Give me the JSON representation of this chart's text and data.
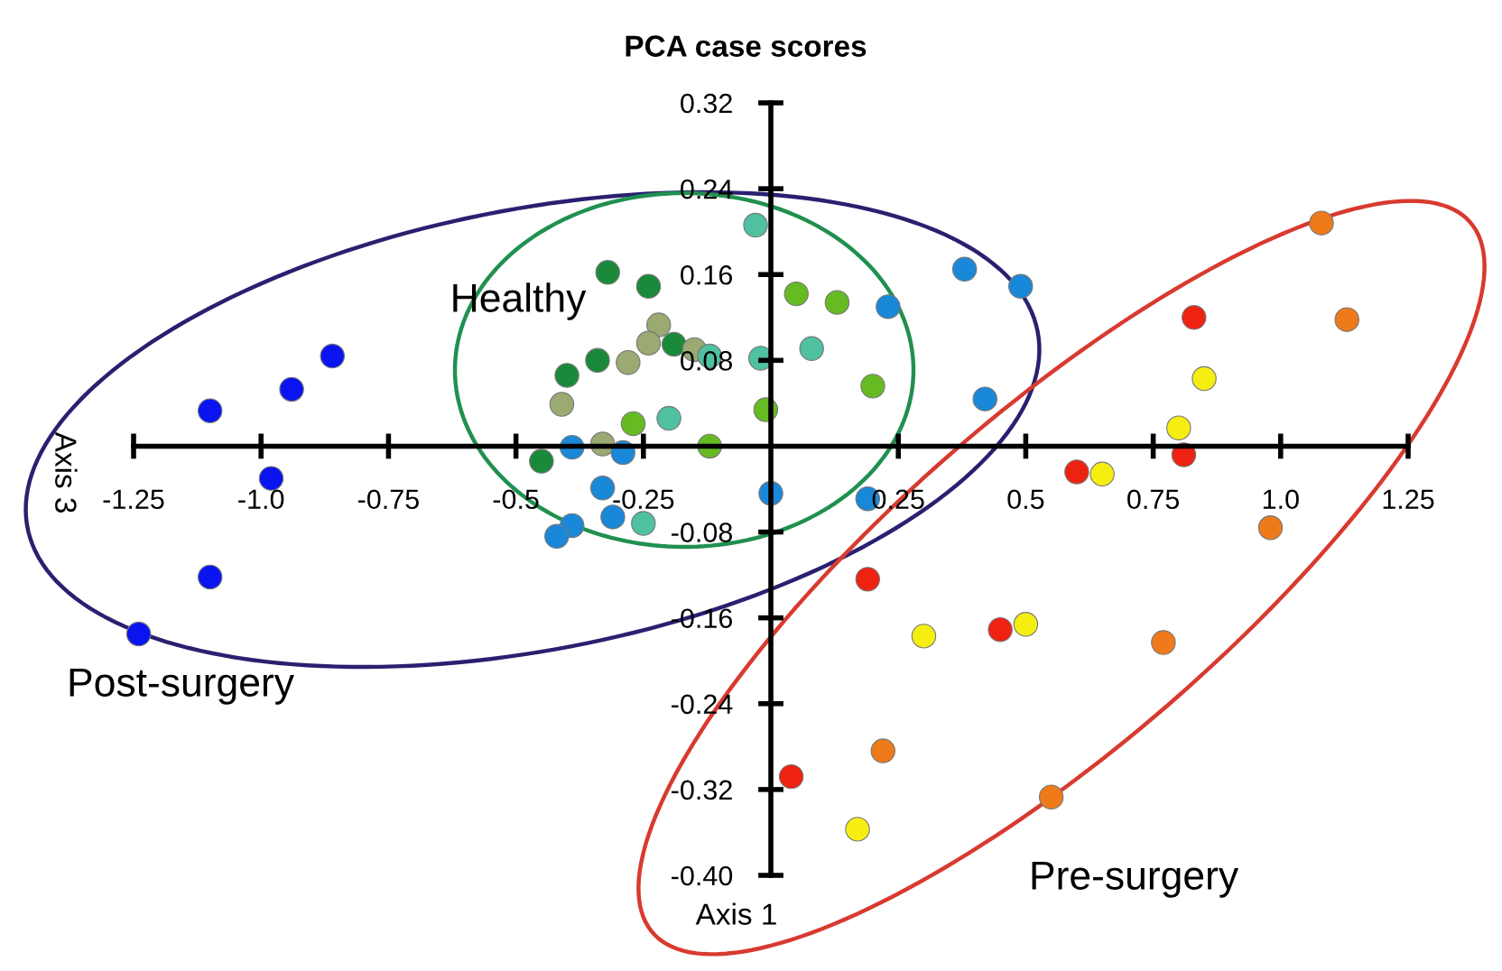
{
  "chart_data": {
    "type": "scatter",
    "title": "PCA case scores",
    "xlabel": "Axis 1",
    "ylabel": "Axis 3",
    "annotations": [
      "Healthy",
      "Post-surgery",
      "Pre-surgery"
    ],
    "xlim": [
      -1.25,
      1.25
    ],
    "ylim": [
      -0.4,
      0.32
    ],
    "xticks": [
      -1.25,
      {
        "value": -1,
        "label": "-1.0"
      },
      -0.75,
      -0.5,
      -0.25,
      0.25,
      0.5,
      0.75,
      {
        "value": 1,
        "label": "1.0"
      },
      1.25
    ],
    "yticks": [
      0.32,
      0.24,
      0.16,
      0.08,
      {
        "value": -0.08,
        "label": "-0.08"
      },
      {
        "value": -0.16,
        "label": "-0.16"
      },
      {
        "value": -0.24,
        "label": "-0.24"
      },
      {
        "value": -0.32,
        "label": "-0.32"
      },
      {
        "value": -0.4,
        "label": "-0.40"
      }
    ],
    "grid": false,
    "legend": false,
    "marker": "circle",
    "series": [
      {
        "color": "#0a14f0",
        "x": [
          -0.86,
          -0.94,
          -1.1,
          -0.98,
          -1.1,
          -1.24
        ],
        "values": [
          0.084,
          0.053,
          0.033,
          -0.03,
          -0.122,
          -0.175
        ]
      },
      {
        "color": "#1a8a3a",
        "x": [
          -0.32,
          -0.24,
          -0.19,
          -0.34,
          -0.4,
          -0.45
        ],
        "values": [
          0.162,
          0.149,
          0.095,
          0.08,
          0.066,
          -0.014
        ]
      },
      {
        "color": "#9aaa72",
        "x": [
          -0.22,
          -0.24,
          -0.28,
          -0.15,
          -0.41,
          -0.33
        ],
        "values": [
          0.113,
          0.096,
          0.078,
          0.09,
          0.039,
          0.002
        ]
      },
      {
        "color": "#4fc0a0",
        "x": [
          -0.03,
          -0.02,
          0.08,
          -0.2,
          -0.25,
          -0.12
        ],
        "values": [
          0.206,
          0.082,
          0.091,
          0.026,
          -0.072,
          0.084
        ]
      },
      {
        "color": "#66bb22",
        "x": [
          0.05,
          0.13,
          0.2,
          -0.01,
          -0.27,
          -0.12
        ],
        "values": [
          0.142,
          0.134,
          0.056,
          0.034,
          0.021,
          0.0
        ]
      },
      {
        "color": "#1a88d8",
        "x": [
          0.38,
          0.49,
          0.23,
          0.42,
          0.19,
          0.0,
          -0.39,
          -0.29,
          -0.33,
          -0.31,
          -0.39,
          -0.42
        ],
        "values": [
          0.165,
          0.149,
          0.13,
          0.044,
          -0.049,
          -0.044,
          -0.001,
          -0.006,
          -0.039,
          -0.066,
          -0.074,
          -0.084
        ]
      },
      {
        "color": "#ee2211",
        "x": [
          0.83,
          0.81,
          0.6,
          0.19,
          0.45,
          0.04
        ],
        "values": [
          0.12,
          -0.008,
          -0.024,
          -0.124,
          -0.171,
          -0.308
        ]
      },
      {
        "color": "#f5ee10",
        "x": [
          0.85,
          0.8,
          0.65,
          0.5,
          0.3,
          0.17
        ],
        "values": [
          0.063,
          0.017,
          -0.026,
          -0.166,
          -0.177,
          -0.357
        ]
      },
      {
        "color": "#ee7a1a",
        "x": [
          1.08,
          1.13,
          0.98,
          0.77,
          0.22,
          0.55
        ],
        "values": [
          0.208,
          0.118,
          -0.076,
          -0.183,
          -0.284,
          -0.327
        ]
      }
    ]
  }
}
